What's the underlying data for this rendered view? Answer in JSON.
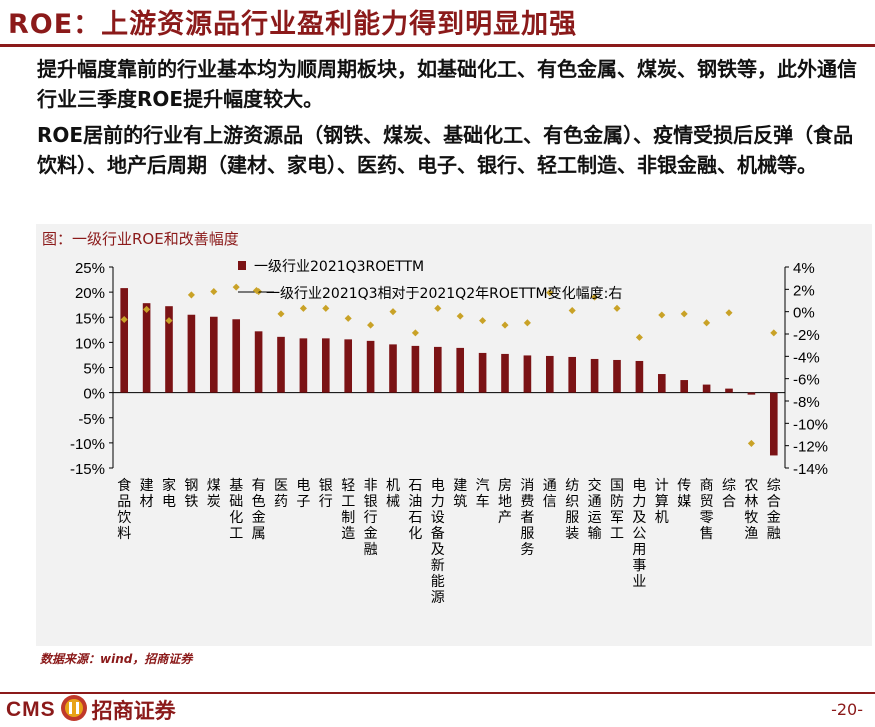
{
  "title": "ROE：上游资源品行业盈利能力得到明显加强",
  "paragraph1": "提升幅度靠前的行业基本均为顺周期板块，如基础化工、有色金属、煤炭、钢铁等，此外通信行业三季度ROE提升幅度较大。",
  "paragraph2": "ROE居前的行业有上游资源品（钢铁、煤炭、基础化工、有色金属）、疫情受损后反弹（食品饮料）、地产后周期（建材、家电）、医药、电子、银行、轻工制造、非银金融、机械等。",
  "chart_caption": "图：一级行业ROE和改善幅度",
  "source": "数据来源：wind，招商证券",
  "footer": {
    "logo_text": "CMS",
    "company": "招商证券",
    "page": "-20-"
  },
  "colors": {
    "bar": "#7b1315",
    "marker": "#c9a227",
    "accent": "#8b1a1a"
  },
  "chart_data": {
    "type": "bar",
    "categories": [
      "食品饮料",
      "建材",
      "家电",
      "钢铁",
      "煤炭",
      "基础化工",
      "有色金属",
      "医药",
      "电子",
      "银行",
      "轻工制造",
      "非银行金融",
      "机械",
      "石油石化",
      "电力设备及新能源",
      "建筑",
      "汽车",
      "房地产",
      "消费者服务",
      "通信",
      "纺织服装",
      "交通运输",
      "国防军工",
      "电力及公用事业",
      "计算机",
      "传媒",
      "商贸零售",
      "综合",
      "农林牧渔",
      "综合金融"
    ],
    "series": [
      {
        "name": "一级行业2021Q3ROETTM",
        "axis": "left",
        "kind": "bar",
        "values": [
          20.8,
          17.8,
          17.2,
          15.5,
          15.1,
          14.6,
          12.2,
          11.1,
          10.8,
          10.8,
          10.6,
          10.3,
          9.6,
          9.3,
          9.1,
          8.9,
          7.9,
          7.7,
          7.4,
          7.3,
          7.1,
          6.7,
          6.5,
          6.3,
          3.7,
          2.5,
          1.6,
          0.8,
          -0.4,
          -12.5
        ]
      },
      {
        "name": "一级行业2021Q3相对于2021Q2年ROETTM变化幅度:右",
        "axis": "right",
        "kind": "marker",
        "values": [
          -0.7,
          0.2,
          -0.8,
          1.5,
          1.8,
          2.2,
          1.8,
          -0.2,
          0.3,
          0.3,
          -0.6,
          -1.2,
          0.0,
          -1.9,
          0.3,
          -0.4,
          -0.8,
          -1.2,
          -1.0,
          1.7,
          0.1,
          1.3,
          0.3,
          -2.3,
          -0.3,
          -0.2,
          -1.0,
          -0.1,
          -11.8,
          -1.9
        ]
      }
    ],
    "ylim_left": [
      -15,
      25
    ],
    "yticks_left": [
      "25%",
      "20%",
      "15%",
      "10%",
      "5%",
      "0%",
      "-5%",
      "-10%",
      "-15%"
    ],
    "ylim_right": [
      -14,
      4
    ],
    "yticks_right": [
      "4%",
      "2%",
      "0%",
      "-2%",
      "-4%",
      "-6%",
      "-8%",
      "-10%",
      "-12%",
      "-14%"
    ],
    "legend_position": "top"
  }
}
